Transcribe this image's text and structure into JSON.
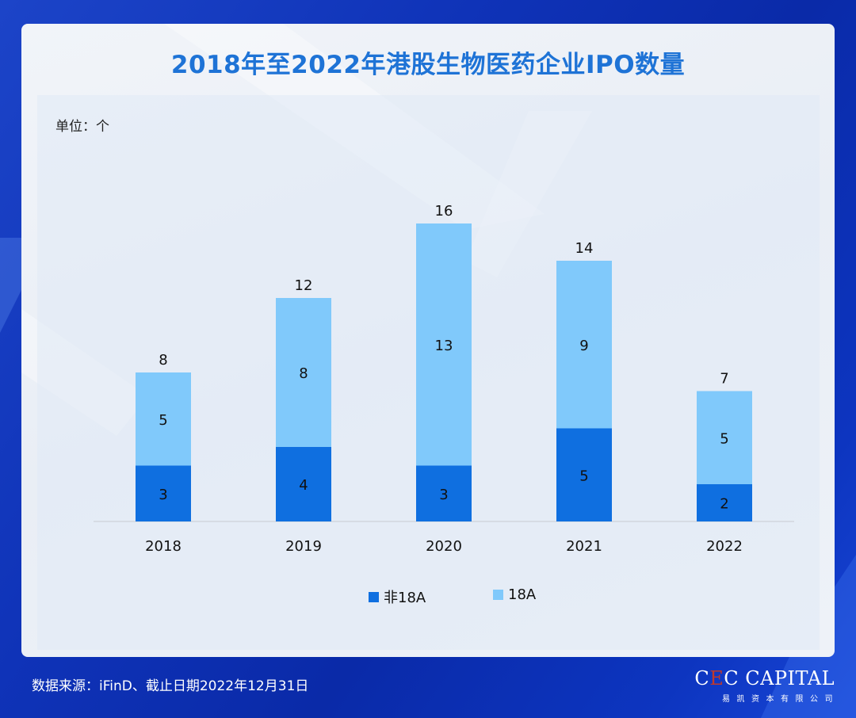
{
  "title": "2018年至2022年港股生物医药企业IPO数量",
  "unit_label": "单位：个",
  "source": "数据来源：iFinD、截止日期2022年12月31日",
  "logo": {
    "c1": "C",
    "e": "E",
    "c2": "C CAPITAL",
    "sub": "易凯资本有限公司"
  },
  "colors": {
    "non18a": "#0f6fe0",
    "a18": "#80c9fb",
    "title": "#1e73d6"
  },
  "chart_data": {
    "type": "bar",
    "stacked": true,
    "title": "2018年至2022年港股生物医药企业IPO数量",
    "ylabel": "单位：个",
    "categories": [
      "2018",
      "2019",
      "2020",
      "2021",
      "2022"
    ],
    "series": [
      {
        "name": "非18A",
        "values": [
          3,
          4,
          3,
          5,
          2
        ]
      },
      {
        "name": "18A",
        "values": [
          5,
          8,
          13,
          9,
          5
        ]
      }
    ],
    "totals": [
      8,
      12,
      16,
      14,
      7
    ],
    "ylim": [
      0,
      16
    ],
    "grid": false,
    "legend": "bottom-center"
  }
}
